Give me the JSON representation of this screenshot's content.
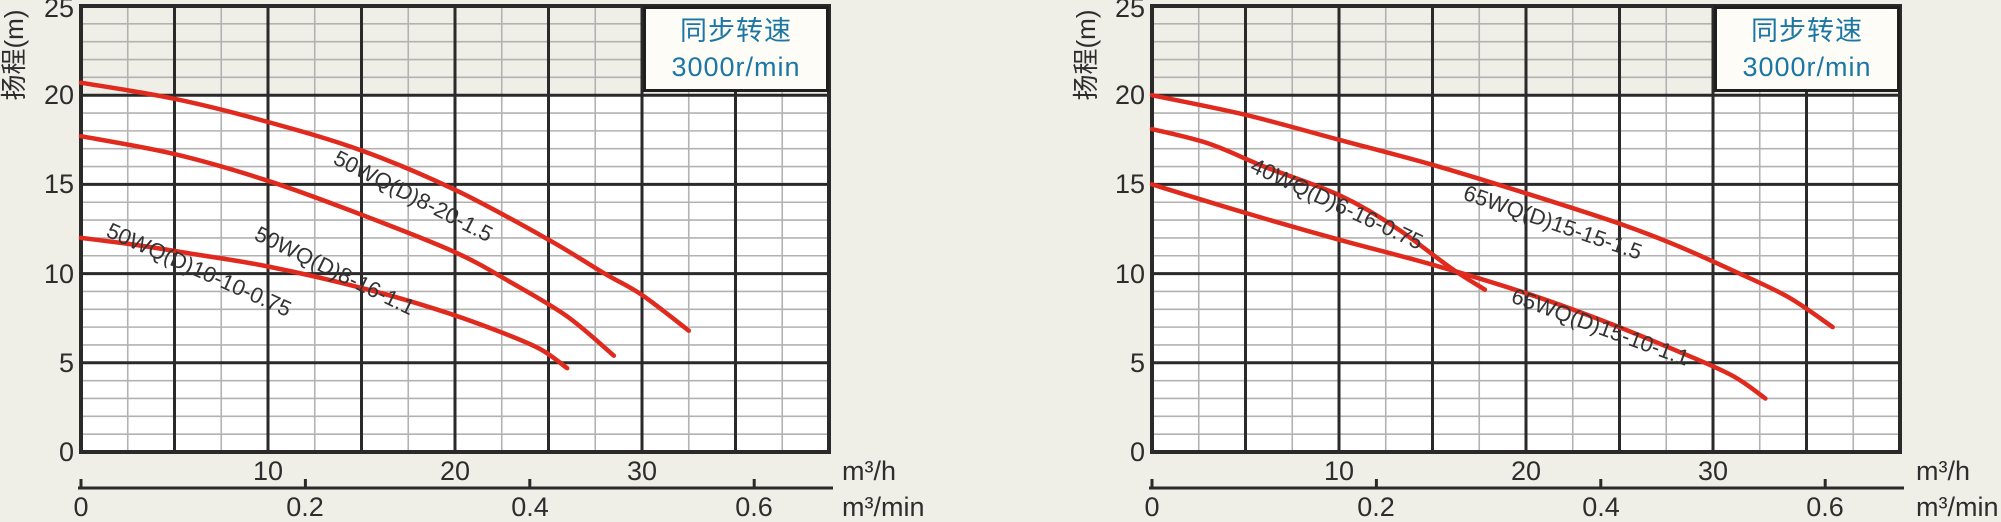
{
  "colors": {
    "background": "#f0efe7",
    "plot_background": "#ffffff",
    "top_band": "#f0efe7",
    "grid_major": "#2a2a2a",
    "grid_minor": "#b2b2b2",
    "curve": "#e02a1e",
    "legend_text": "#1b76a6",
    "label_text": "#333333"
  },
  "legend": {
    "line1": "同步转速",
    "line2": "3000r/min"
  },
  "axes": {
    "y_title": "扬程(m)",
    "y_ticks": [
      "25",
      "20",
      "15",
      "10",
      "5",
      "0"
    ],
    "x_ticks": [
      "10",
      "20",
      "30"
    ],
    "x2_ticks": [
      "0",
      "0.2",
      "0.4",
      "0.6"
    ],
    "unit_primary": "m³/h",
    "unit_secondary": "m³/min"
  },
  "chart_data": [
    {
      "type": "line",
      "title": "",
      "ylabel": "扬程(m)",
      "xlabel": "m³/h",
      "x2label": "m³/min",
      "xlim": [
        0,
        40
      ],
      "ylim": [
        0,
        25
      ],
      "x_major_step": 5,
      "x_minor_step": 2.5,
      "y_major_step": 5,
      "y_minor_step": 1,
      "x2_tick_values": [
        0,
        0.2,
        0.4,
        0.6
      ],
      "annotation": "同步转速 3000r/min",
      "series": [
        {
          "name": "50WQ(D)8-20-1.5",
          "points": [
            [
              0,
              20.7
            ],
            [
              5,
              19.8
            ],
            [
              10,
              18.5
            ],
            [
              15,
              16.9
            ],
            [
              20,
              14.7
            ],
            [
              25,
              11.9
            ],
            [
              28,
              10.0
            ],
            [
              30,
              8.8
            ],
            [
              32.5,
              6.8
            ]
          ]
        },
        {
          "name": "50WQ(D)8-16-1.1",
          "points": [
            [
              0,
              17.7
            ],
            [
              5,
              16.7
            ],
            [
              10,
              15.2
            ],
            [
              15,
              13.3
            ],
            [
              20,
              11.2
            ],
            [
              23,
              9.5
            ],
            [
              26,
              7.6
            ],
            [
              28.5,
              5.4
            ]
          ]
        },
        {
          "name": "50WQ(D)10-10-0.75",
          "points": [
            [
              0,
              12.0
            ],
            [
              3,
              11.6
            ],
            [
              6,
              11.1
            ],
            [
              10,
              10.4
            ],
            [
              15,
              9.2
            ],
            [
              19,
              8.0
            ],
            [
              22,
              6.9
            ],
            [
              24.5,
              5.8
            ],
            [
              26,
              4.7
            ]
          ]
        }
      ]
    },
    {
      "type": "line",
      "title": "",
      "ylabel": "扬程(m)",
      "xlabel": "m³/h",
      "x2label": "m³/min",
      "xlim": [
        0,
        40
      ],
      "ylim": [
        0,
        25
      ],
      "x_major_step": 5,
      "x_minor_step": 2.5,
      "y_major_step": 5,
      "y_minor_step": 1,
      "x2_tick_values": [
        0,
        0.2,
        0.4,
        0.6
      ],
      "annotation": "同步转速 3000r/min",
      "series": [
        {
          "name": "65WQ(D)15-15-1.5",
          "points": [
            [
              0,
              20.0
            ],
            [
              5,
              18.9
            ],
            [
              10,
              17.5
            ],
            [
              15,
              16.1
            ],
            [
              20,
              14.5
            ],
            [
              25,
              12.8
            ],
            [
              28,
              11.6
            ],
            [
              31,
              10.2
            ],
            [
              34,
              8.7
            ],
            [
              36.4,
              7.0
            ]
          ]
        },
        {
          "name": "40WQ(D)6-16-0.75",
          "points": [
            [
              0,
              18.1
            ],
            [
              3,
              17.3
            ],
            [
              6,
              16.0
            ],
            [
              10,
              14.4
            ],
            [
              13,
              12.6
            ],
            [
              16,
              10.3
            ],
            [
              17.8,
              9.1
            ]
          ]
        },
        {
          "name": "65WQ(D)15-10-1.1",
          "points": [
            [
              0,
              15.0
            ],
            [
              5,
              13.4
            ],
            [
              10,
              11.9
            ],
            [
              15,
              10.5
            ],
            [
              20,
              8.9
            ],
            [
              24,
              7.4
            ],
            [
              28,
              5.7
            ],
            [
              31,
              4.3
            ],
            [
              32.8,
              3.0
            ]
          ]
        }
      ]
    }
  ]
}
